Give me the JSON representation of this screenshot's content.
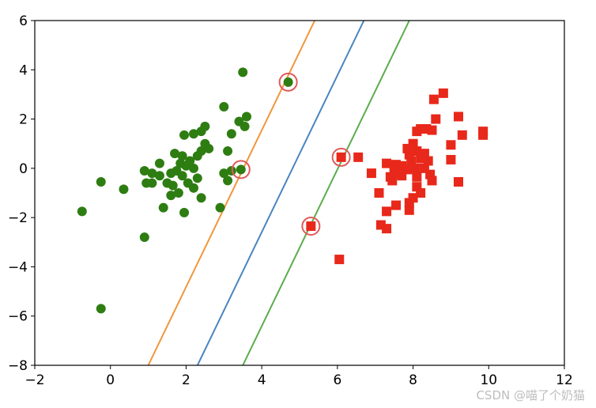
{
  "chart_data": {
    "type": "scatter",
    "xlim": [
      -2,
      12
    ],
    "ylim": [
      -8,
      6
    ],
    "xticks": [
      -2,
      0,
      2,
      4,
      6,
      8,
      10,
      12
    ],
    "yticks": [
      -8,
      -6,
      -4,
      -2,
      0,
      2,
      4,
      6
    ],
    "grid": false,
    "series": [
      {
        "marker": "circle",
        "color": "#2e7d12",
        "points": [
          [
            3.5,
            3.9
          ],
          [
            3.0,
            2.5
          ],
          [
            3.6,
            2.1
          ],
          [
            3.4,
            1.9
          ],
          [
            3.55,
            1.7
          ],
          [
            3.2,
            1.4
          ],
          [
            2.5,
            1.7
          ],
          [
            2.4,
            1.5
          ],
          [
            2.2,
            1.4
          ],
          [
            1.95,
            1.35
          ],
          [
            2.5,
            1.0
          ],
          [
            2.6,
            0.8
          ],
          [
            2.4,
            0.7
          ],
          [
            3.1,
            0.7
          ],
          [
            2.3,
            0.5
          ],
          [
            1.9,
            0.5
          ],
          [
            1.7,
            0.6
          ],
          [
            1.3,
            0.2
          ],
          [
            2.1,
            0.3
          ],
          [
            2.0,
            0.1
          ],
          [
            1.85,
            0.2
          ],
          [
            2.2,
            0.0
          ],
          [
            1.75,
            -0.1
          ],
          [
            1.6,
            -0.2
          ],
          [
            1.3,
            -0.3
          ],
          [
            1.1,
            -0.2
          ],
          [
            0.9,
            -0.1
          ],
          [
            1.9,
            -0.3
          ],
          [
            2.05,
            -0.6
          ],
          [
            2.3,
            -0.4
          ],
          [
            1.5,
            -0.6
          ],
          [
            1.65,
            -0.7
          ],
          [
            1.1,
            -0.6
          ],
          [
            0.95,
            -0.6
          ],
          [
            3.2,
            -0.1
          ],
          [
            3.0,
            -0.2
          ],
          [
            3.1,
            -0.5
          ],
          [
            2.2,
            -0.8
          ],
          [
            1.8,
            -1.0
          ],
          [
            1.6,
            -1.1
          ],
          [
            2.4,
            -1.2
          ],
          [
            1.4,
            -1.6
          ],
          [
            1.95,
            -1.8
          ],
          [
            2.9,
            -1.6
          ],
          [
            0.35,
            -0.85
          ],
          [
            -0.25,
            -0.55
          ],
          [
            -0.75,
            -1.75
          ],
          [
            0.9,
            -2.8
          ],
          [
            -0.25,
            -5.7
          ],
          [
            3.45,
            -0.05
          ],
          [
            4.7,
            3.5
          ]
        ]
      },
      {
        "marker": "square",
        "color": "#e8281a",
        "points": [
          [
            8.8,
            3.05
          ],
          [
            8.55,
            2.8
          ],
          [
            9.2,
            2.1
          ],
          [
            8.6,
            2.0
          ],
          [
            8.35,
            1.6
          ],
          [
            8.2,
            1.6
          ],
          [
            8.1,
            1.5
          ],
          [
            8.5,
            1.55
          ],
          [
            9.85,
            1.5
          ],
          [
            9.85,
            1.35
          ],
          [
            9.3,
            1.35
          ],
          [
            9.0,
            0.95
          ],
          [
            8.0,
            1.0
          ],
          [
            7.85,
            0.8
          ],
          [
            8.1,
            0.7
          ],
          [
            8.3,
            0.6
          ],
          [
            7.9,
            0.55
          ],
          [
            8.2,
            0.4
          ],
          [
            7.95,
            0.3
          ],
          [
            8.4,
            0.3
          ],
          [
            6.55,
            0.45
          ],
          [
            7.3,
            0.2
          ],
          [
            7.55,
            0.15
          ],
          [
            7.7,
            0.1
          ],
          [
            7.5,
            0.0
          ],
          [
            7.85,
            -0.05
          ],
          [
            8.05,
            0.0
          ],
          [
            8.3,
            0.0
          ],
          [
            9.0,
            0.35
          ],
          [
            6.9,
            -0.2
          ],
          [
            7.6,
            -0.2
          ],
          [
            7.4,
            -0.35
          ],
          [
            7.7,
            -0.3
          ],
          [
            8.1,
            -0.35
          ],
          [
            8.45,
            -0.25
          ],
          [
            8.5,
            -0.5
          ],
          [
            7.45,
            -0.5
          ],
          [
            9.2,
            -0.55
          ],
          [
            8.1,
            -0.75
          ],
          [
            7.1,
            -1.0
          ],
          [
            8.2,
            -1.0
          ],
          [
            8.0,
            -1.2
          ],
          [
            7.9,
            -1.4
          ],
          [
            7.55,
            -1.5
          ],
          [
            7.3,
            -1.75
          ],
          [
            7.9,
            -1.7
          ],
          [
            7.15,
            -2.3
          ],
          [
            7.3,
            -2.45
          ],
          [
            6.05,
            -3.7
          ],
          [
            5.3,
            -2.35
          ],
          [
            6.1,
            0.45
          ]
        ]
      }
    ],
    "lines": [
      {
        "color": "#f0963c",
        "points": [
          [
            1.0,
            -8.0
          ],
          [
            5.4,
            6.0
          ]
        ]
      },
      {
        "color": "#4a84c0",
        "points": [
          [
            2.3,
            -8.0
          ],
          [
            6.7,
            6.0
          ]
        ]
      },
      {
        "color": "#5cab4c",
        "points": [
          [
            3.5,
            -8.0
          ],
          [
            7.9,
            6.0
          ]
        ]
      }
    ],
    "highlighted_points": {
      "color": "#e05a5a",
      "points": [
        [
          4.7,
          3.5
        ],
        [
          3.45,
          -0.05
        ],
        [
          6.1,
          0.45
        ],
        [
          5.3,
          -2.35
        ]
      ]
    }
  },
  "watermark": "CSDN @喵了个奶猫"
}
